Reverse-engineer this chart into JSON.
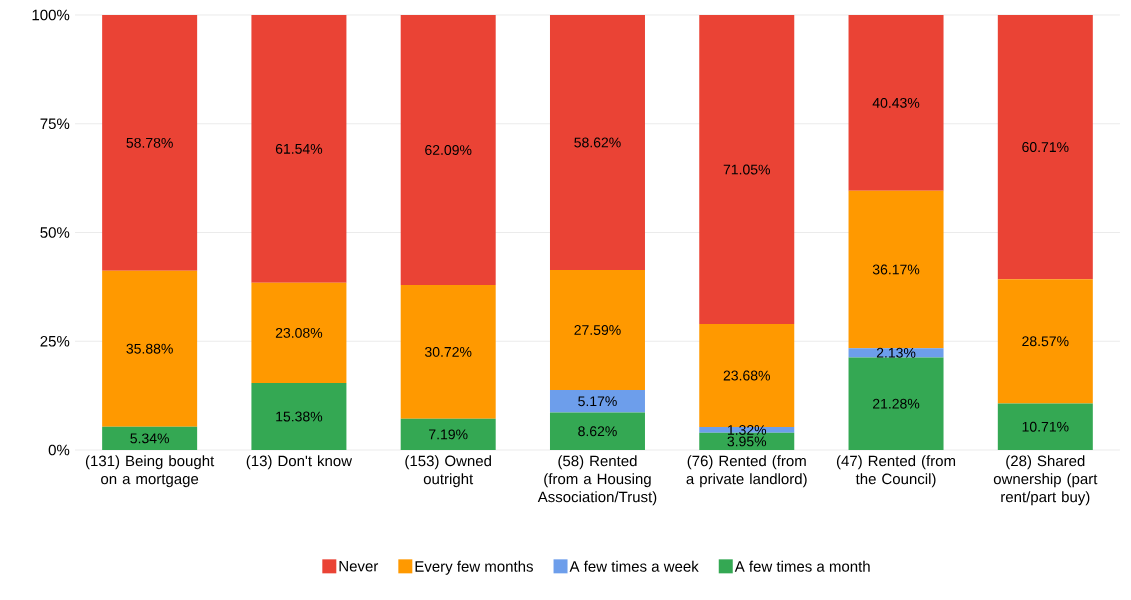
{
  "chart_data": {
    "type": "bar",
    "stacked": true,
    "categories": [
      "(131) Being bought on a mortgage",
      "(13) Don't know",
      "(153) Owned outright",
      "(58) Rented (from a Housing Association/Trust)",
      "(76) Rented (from a private landlord)",
      "(47) Rented (from the Council)",
      "(28) Shared ownership (part rent/part buy)"
    ],
    "series": [
      {
        "name": "A few times a month",
        "color": "#34a853",
        "values": [
          5.34,
          15.38,
          7.19,
          8.62,
          3.95,
          21.28,
          10.71
        ],
        "value_labels": [
          "5.34%",
          "15.38%",
          "7.19%",
          "8.62%",
          "3.95%",
          "21.28%",
          "10.71%"
        ]
      },
      {
        "name": "A few times a week",
        "color": "#6d9eeb",
        "values": [
          null,
          null,
          null,
          5.17,
          1.32,
          2.13,
          null
        ],
        "value_labels": [
          null,
          null,
          null,
          "5.17%",
          "1.32%",
          "2.13%",
          null
        ]
      },
      {
        "name": "Every few months",
        "color": "#ff9900",
        "values": [
          35.88,
          23.08,
          30.72,
          27.59,
          23.68,
          36.17,
          28.57
        ],
        "value_labels": [
          "35.88%",
          "23.08%",
          "30.72%",
          "27.59%",
          "23.68%",
          "36.17%",
          "28.57%"
        ]
      },
      {
        "name": "Never",
        "color": "#ea4335",
        "values": [
          58.78,
          61.54,
          62.09,
          58.62,
          71.05,
          40.43,
          60.71
        ],
        "value_labels": [
          "58.78%",
          "61.54%",
          "62.09%",
          "58.62%",
          "71.05%",
          "40.43%",
          "60.71%"
        ]
      }
    ],
    "ylim": [
      0,
      100
    ],
    "yticks": [
      {
        "value": 0,
        "label": "0%"
      },
      {
        "value": 25,
        "label": "25%"
      },
      {
        "value": 50,
        "label": "50%"
      },
      {
        "value": 75,
        "label": "75%"
      },
      {
        "value": 100,
        "label": "100%"
      }
    ],
    "grid": "y",
    "legend": "bottom"
  }
}
